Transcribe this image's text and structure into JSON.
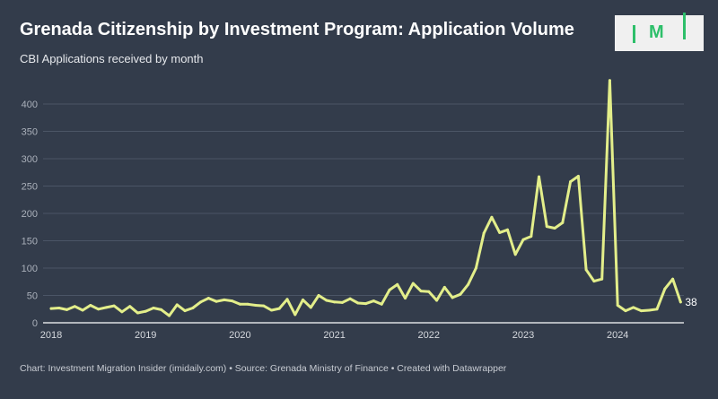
{
  "header": {
    "title": "Grenada Citizenship by Investment Program: Application Volume",
    "subtitle": "CBI Applications received by month"
  },
  "logo": {
    "text": "M",
    "name": "IMI"
  },
  "footer": {
    "text": "Chart: Investment Migration Insider (imidaily.com) • Source: Grenada Ministry of Finance • Created with Datawrapper"
  },
  "colors": {
    "background": "#333c4b",
    "line": "#e3ee8a",
    "grid": "#4b5566",
    "accent": "#2dbf6a"
  },
  "chart_data": {
    "type": "line",
    "title": "Grenada Citizenship by Investment Program: Application Volume",
    "subtitle": "CBI Applications received by month",
    "xlabel": "",
    "ylabel": "",
    "ylim": [
      0,
      400
    ],
    "yticks": [
      0,
      50,
      100,
      150,
      200,
      250,
      300,
      350,
      400
    ],
    "xticks": [
      "2018",
      "2019",
      "2020",
      "2021",
      "2022",
      "2023",
      "2024"
    ],
    "grid": true,
    "start": "2018-01",
    "end_label": "38",
    "series": [
      {
        "name": "CBI Applications",
        "values": [
          26,
          27,
          24,
          30,
          23,
          32,
          25,
          28,
          31,
          20,
          30,
          18,
          21,
          27,
          24,
          13,
          33,
          22,
          27,
          38,
          45,
          39,
          42,
          40,
          34,
          34,
          32,
          31,
          23,
          26,
          43,
          15,
          42,
          28,
          50,
          41,
          38,
          37,
          44,
          36,
          35,
          40,
          34,
          60,
          70,
          45,
          72,
          58,
          57,
          41,
          65,
          46,
          52,
          70,
          100,
          164,
          193,
          165,
          170,
          125,
          152,
          158,
          267,
          176,
          173,
          183,
          258,
          268,
          97,
          76,
          80,
          443,
          32,
          22,
          28,
          22,
          23,
          25,
          62,
          80,
          38
        ]
      }
    ]
  }
}
